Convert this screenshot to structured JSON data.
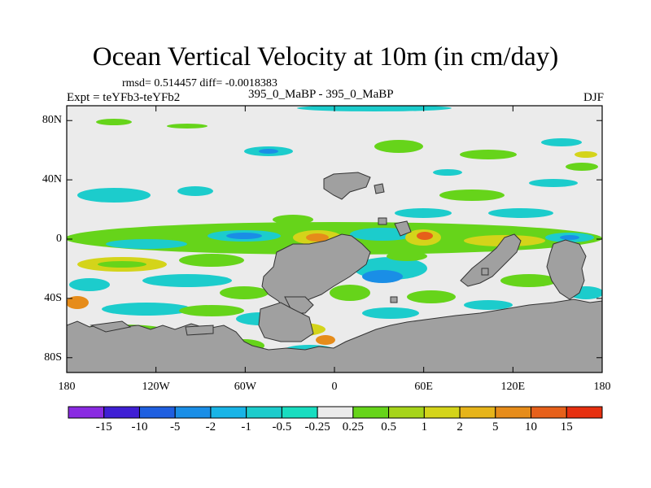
{
  "title": "Ocean Vertical Velocity at 10m (in cm/day)",
  "stats": "rmsd= 0.514457 diff= -0.0018383",
  "experiment": "Expt = teYFb3-teYFb2",
  "runs": "395_0_MaBP - 395_0_MaBP",
  "season": "DJF",
  "lat_labels": [
    "80N",
    "40N",
    "0",
    "40S",
    "80S"
  ],
  "lat_values": [
    80,
    40,
    0,
    -40,
    -80
  ],
  "lon_labels": [
    "180",
    "120W",
    "60W",
    "0",
    "60E",
    "120E",
    "180"
  ],
  "lon_values": [
    -180,
    -120,
    -60,
    0,
    60,
    120,
    180
  ],
  "colorbar": {
    "colors": [
      "#8a2be2",
      "#3f1fd4",
      "#1f5fe0",
      "#1a8ee6",
      "#18b4e6",
      "#1ccccc",
      "#18ddc0",
      "#ebebeb",
      "#66d41a",
      "#a6d41a",
      "#d4d41a",
      "#e6b41a",
      "#e68c1a",
      "#e6601a",
      "#e63010"
    ],
    "labels": [
      "-15",
      "-10",
      "-5",
      "-2",
      "-1",
      "-0.5",
      "-0.25",
      "0.25",
      "0.5",
      "1",
      "2",
      "5",
      "10",
      "15"
    ]
  },
  "colors": {
    "background": "#ebebeb",
    "land": "#a0a0a0"
  }
}
